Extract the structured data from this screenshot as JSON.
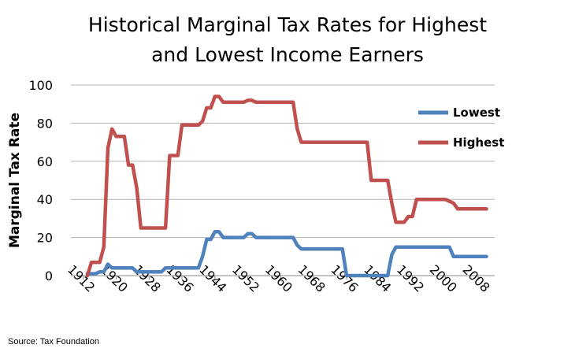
{
  "source_note": "Source: Tax Foundation",
  "chart_data": {
    "type": "line",
    "title_lines": [
      "Historical Marginal Tax Rates for Highest",
      "and Lowest Income Earners"
    ],
    "xlabel": "",
    "ylabel": "Marginal Tax Rate",
    "xlim": [
      1909,
      2012
    ],
    "ylim": [
      0,
      100
    ],
    "y_ticks": [
      0,
      20,
      40,
      60,
      80,
      100
    ],
    "x_ticks": [
      1912,
      1920,
      1928,
      1936,
      1944,
      1952,
      1960,
      1968,
      1976,
      1984,
      1992,
      2000,
      2008
    ],
    "grid": "horizontal",
    "legend_placement": "right",
    "series": [
      {
        "name": "Lowest",
        "color": "#4f81bd",
        "points": [
          [
            1913,
            1
          ],
          [
            1915,
            1
          ],
          [
            1916,
            2
          ],
          [
            1917,
            2
          ],
          [
            1918,
            6
          ],
          [
            1919,
            4
          ],
          [
            1924,
            4
          ],
          [
            1925,
            2
          ],
          [
            1931,
            2
          ],
          [
            1932,
            4
          ],
          [
            1940,
            4
          ],
          [
            1941,
            10
          ],
          [
            1942,
            19
          ],
          [
            1943,
            19
          ],
          [
            1944,
            23
          ],
          [
            1945,
            23
          ],
          [
            1946,
            20
          ],
          [
            1951,
            20
          ],
          [
            1952,
            22
          ],
          [
            1953,
            22
          ],
          [
            1954,
            20
          ],
          [
            1963,
            20
          ],
          [
            1964,
            16
          ],
          [
            1965,
            14
          ],
          [
            1975,
            14
          ],
          [
            1976,
            0
          ],
          [
            1986,
            0
          ],
          [
            1987,
            11
          ],
          [
            1988,
            15
          ],
          [
            2001,
            15
          ],
          [
            2002,
            10
          ],
          [
            2010,
            10
          ]
        ]
      },
      {
        "name": "Highest",
        "color": "#c0504d",
        "points": [
          [
            1913,
            0
          ],
          [
            1914,
            7
          ],
          [
            1915,
            7
          ],
          [
            1916,
            7
          ],
          [
            1917,
            15
          ],
          [
            1918,
            67
          ],
          [
            1919,
            77
          ],
          [
            1920,
            73
          ],
          [
            1921,
            73
          ],
          [
            1922,
            73
          ],
          [
            1923,
            58
          ],
          [
            1924,
            58
          ],
          [
            1925,
            46
          ],
          [
            1926,
            25
          ],
          [
            1931,
            25
          ],
          [
            1932,
            25
          ],
          [
            1933,
            63
          ],
          [
            1935,
            63
          ],
          [
            1936,
            79
          ],
          [
            1940,
            79
          ],
          [
            1941,
            81
          ],
          [
            1942,
            88
          ],
          [
            1943,
            88
          ],
          [
            1944,
            94
          ],
          [
            1945,
            94
          ],
          [
            1946,
            91
          ],
          [
            1951,
            91
          ],
          [
            1952,
            92
          ],
          [
            1953,
            92
          ],
          [
            1954,
            91
          ],
          [
            1963,
            91
          ],
          [
            1964,
            77
          ],
          [
            1965,
            70
          ],
          [
            1981,
            70
          ],
          [
            1982,
            50
          ],
          [
            1986,
            50
          ],
          [
            1987,
            38
          ],
          [
            1988,
            28
          ],
          [
            1990,
            28
          ],
          [
            1991,
            31
          ],
          [
            1992,
            31
          ],
          [
            1993,
            40
          ],
          [
            2000,
            40
          ],
          [
            2001,
            39
          ],
          [
            2002,
            38
          ],
          [
            2003,
            35
          ],
          [
            2010,
            35
          ]
        ]
      }
    ]
  }
}
